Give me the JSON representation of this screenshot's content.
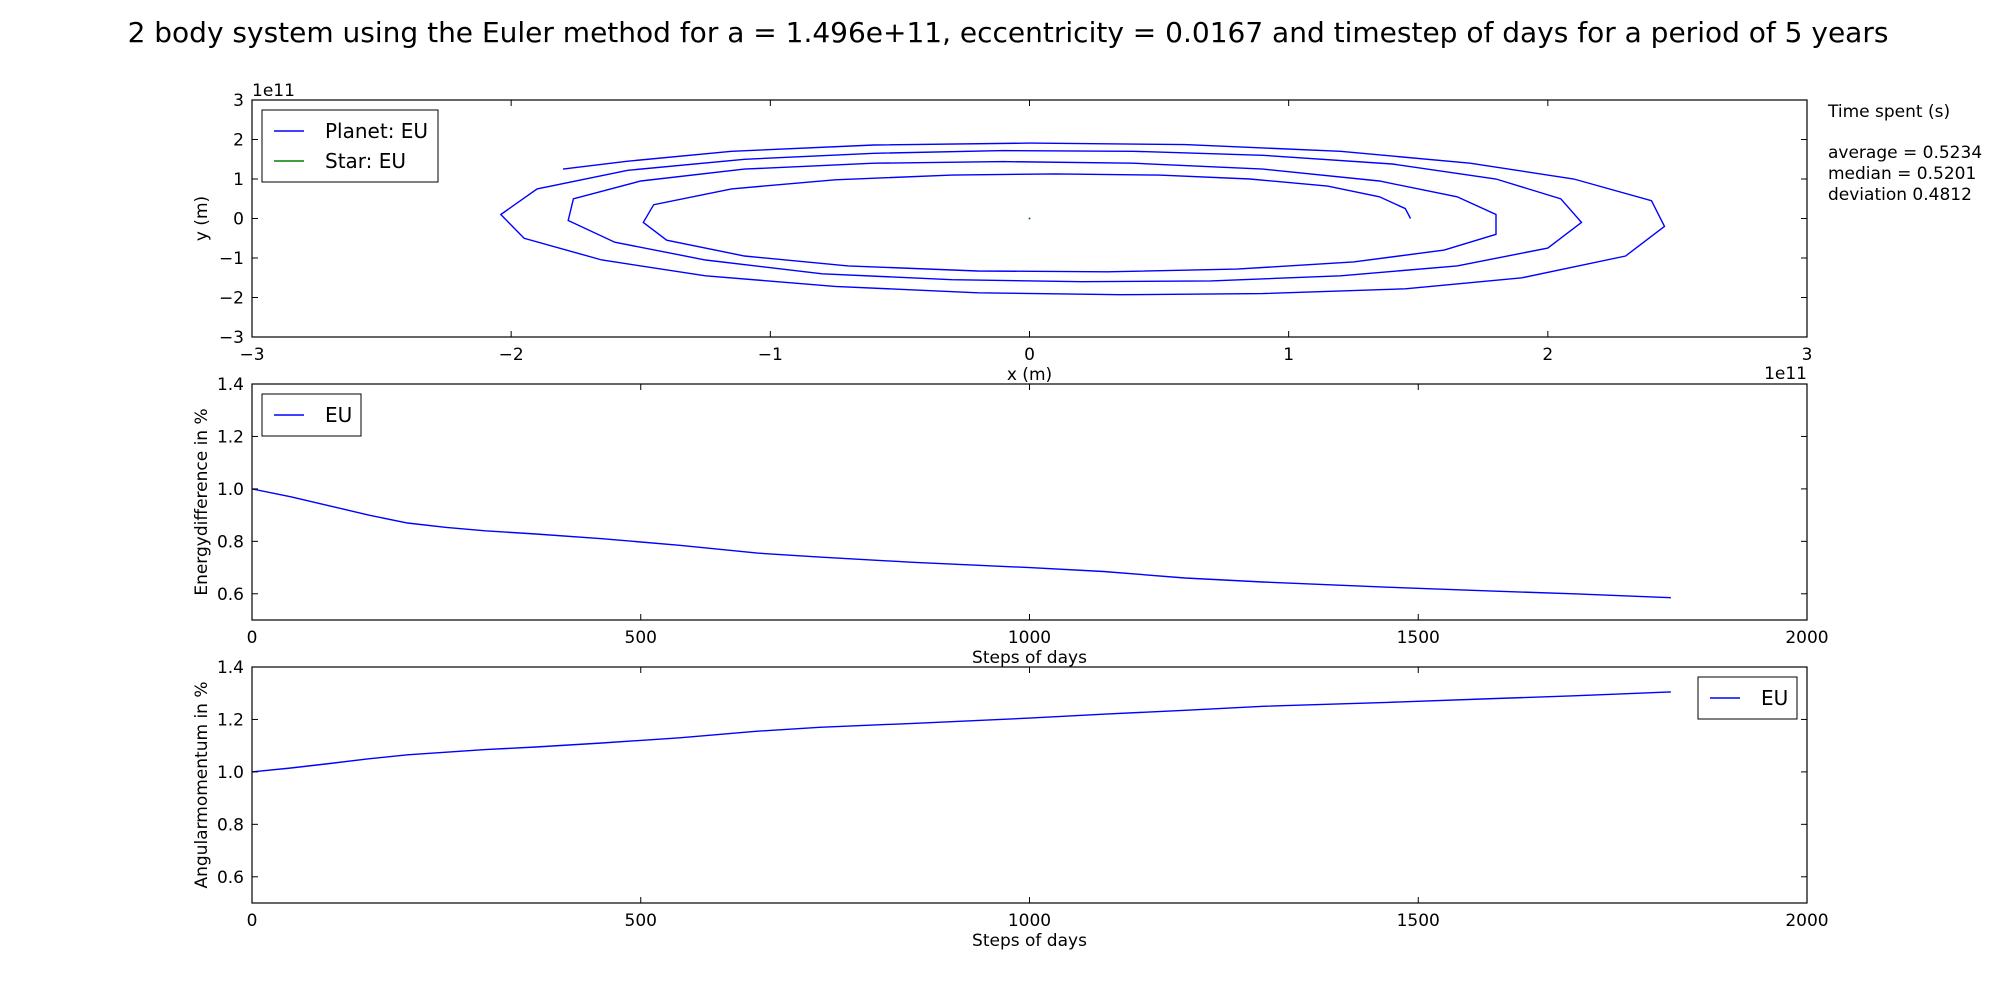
{
  "title": "2 body system using the Euler method for a = 1.496e+11, eccentricity = 0.0167 and timestep of days for a period of 5 years",
  "side_panel": {
    "heading": "Time spent (s)",
    "lines": [
      "average = 0.5234",
      "median = 0.5201",
      "deviation 0.4812"
    ]
  },
  "colors": {
    "planet": "#0000ff",
    "star": "#008000",
    "frame": "#000000"
  },
  "chart_data": [
    {
      "type": "line",
      "xlabel": "x (m)",
      "ylabel": "y (m)",
      "x_offset_label": "1e11",
      "y_offset_label": "1e11",
      "xlim": [
        -3,
        3
      ],
      "ylim": [
        -3,
        3
      ],
      "x_ticks": [
        -3,
        -2,
        -1,
        0,
        1,
        2,
        3
      ],
      "y_ticks": [
        -3,
        -2,
        -1,
        0,
        1,
        2,
        3
      ],
      "x_tick_labels": [
        "−3",
        "−2",
        "−1",
        "0",
        "1",
        "2",
        "3"
      ],
      "y_tick_labels": [
        "−3",
        "−2",
        "−1",
        "0",
        "1",
        "2",
        "3"
      ],
      "legend_position": "top-left",
      "series": [
        {
          "name": "Planet: EU",
          "color": "#0000ff",
          "x": [
            1.47,
            1.45,
            1.35,
            1.15,
            0.85,
            0.5,
            0.1,
            -0.3,
            -0.75,
            -1.15,
            -1.45,
            -1.49,
            -1.4,
            -1.1,
            -0.7,
            -0.2,
            0.3,
            0.8,
            1.25,
            1.6,
            1.8,
            1.8,
            1.65,
            1.35,
            0.9,
            0.4,
            -0.1,
            -0.6,
            -1.1,
            -1.5,
            -1.76,
            -1.78,
            -1.6,
            -1.25,
            -0.8,
            -0.3,
            0.2,
            0.7,
            1.2,
            1.65,
            2.0,
            2.13,
            2.05,
            1.8,
            1.4,
            0.9,
            0.4,
            -0.1,
            -0.6,
            -1.1,
            -1.55,
            -1.9,
            -2.04,
            -1.95,
            -1.65,
            -1.25,
            -0.75,
            -0.2,
            0.35,
            0.9,
            1.45,
            1.9,
            2.3,
            2.45,
            2.4,
            2.1,
            1.7,
            1.2,
            0.6,
            0.0,
            -0.6,
            -1.15,
            -1.55,
            -1.8
          ],
          "y": [
            0.0,
            0.25,
            0.55,
            0.82,
            1.0,
            1.1,
            1.13,
            1.1,
            0.98,
            0.75,
            0.35,
            -0.1,
            -0.55,
            -0.95,
            -1.2,
            -1.33,
            -1.35,
            -1.28,
            -1.1,
            -0.8,
            -0.4,
            0.1,
            0.55,
            0.95,
            1.25,
            1.4,
            1.44,
            1.4,
            1.25,
            0.95,
            0.5,
            -0.05,
            -0.6,
            -1.05,
            -1.4,
            -1.55,
            -1.6,
            -1.58,
            -1.45,
            -1.2,
            -0.75,
            -0.1,
            0.5,
            1.0,
            1.38,
            1.6,
            1.7,
            1.72,
            1.65,
            1.5,
            1.22,
            0.75,
            0.1,
            -0.5,
            -1.05,
            -1.45,
            -1.72,
            -1.88,
            -1.93,
            -1.9,
            -1.78,
            -1.5,
            -0.95,
            -0.2,
            0.45,
            1.0,
            1.4,
            1.7,
            1.87,
            1.91,
            1.86,
            1.7,
            1.45,
            1.25
          ]
        },
        {
          "name": "Star: EU",
          "color": "#008000",
          "x": [
            0.0,
            0.0
          ],
          "y": [
            0.0,
            0.0
          ]
        }
      ]
    },
    {
      "type": "line",
      "xlabel": "Steps of days",
      "ylabel": "Energydifference in %",
      "xlim": [
        0,
        2000
      ],
      "ylim": [
        0.5,
        1.4
      ],
      "x_ticks": [
        0,
        500,
        1000,
        1500,
        2000
      ],
      "y_ticks": [
        0.6,
        0.8,
        1.0,
        1.2,
        1.4
      ],
      "x_tick_labels": [
        "0",
        "500",
        "1000",
        "1500",
        "2000"
      ],
      "y_tick_labels": [
        "0.6",
        "0.8",
        "1.0",
        "1.2",
        "1.4"
      ],
      "legend_position": "top-left",
      "series": [
        {
          "name": "EU",
          "color": "#0000ff",
          "x": [
            0,
            50,
            100,
            150,
            200,
            250,
            300,
            365,
            450,
            550,
            650,
            730,
            850,
            1000,
            1095,
            1200,
            1300,
            1460,
            1600,
            1700,
            1825
          ],
          "y": [
            1.0,
            0.97,
            0.935,
            0.9,
            0.87,
            0.853,
            0.84,
            0.828,
            0.81,
            0.785,
            0.755,
            0.74,
            0.72,
            0.7,
            0.685,
            0.66,
            0.645,
            0.625,
            0.61,
            0.6,
            0.585
          ]
        }
      ]
    },
    {
      "type": "line",
      "xlabel": "Steps of days",
      "ylabel": "Angularmomentum in  %",
      "xlim": [
        0,
        2000
      ],
      "ylim": [
        0.5,
        1.4
      ],
      "x_ticks": [
        0,
        500,
        1000,
        1500,
        2000
      ],
      "y_ticks": [
        0.6,
        0.8,
        1.0,
        1.2,
        1.4
      ],
      "x_tick_labels": [
        "0",
        "500",
        "1000",
        "1500",
        "2000"
      ],
      "y_tick_labels": [
        "0.6",
        "0.8",
        "1.0",
        "1.2",
        "1.4"
      ],
      "legend_position": "top-right",
      "series": [
        {
          "name": "EU",
          "color": "#0000ff",
          "x": [
            0,
            50,
            100,
            150,
            200,
            250,
            300,
            365,
            450,
            550,
            650,
            730,
            850,
            1000,
            1095,
            1200,
            1300,
            1460,
            1600,
            1700,
            1825
          ],
          "y": [
            1.0,
            1.015,
            1.032,
            1.05,
            1.065,
            1.075,
            1.085,
            1.095,
            1.11,
            1.13,
            1.155,
            1.17,
            1.185,
            1.205,
            1.22,
            1.235,
            1.25,
            1.265,
            1.28,
            1.29,
            1.305
          ]
        }
      ]
    }
  ]
}
